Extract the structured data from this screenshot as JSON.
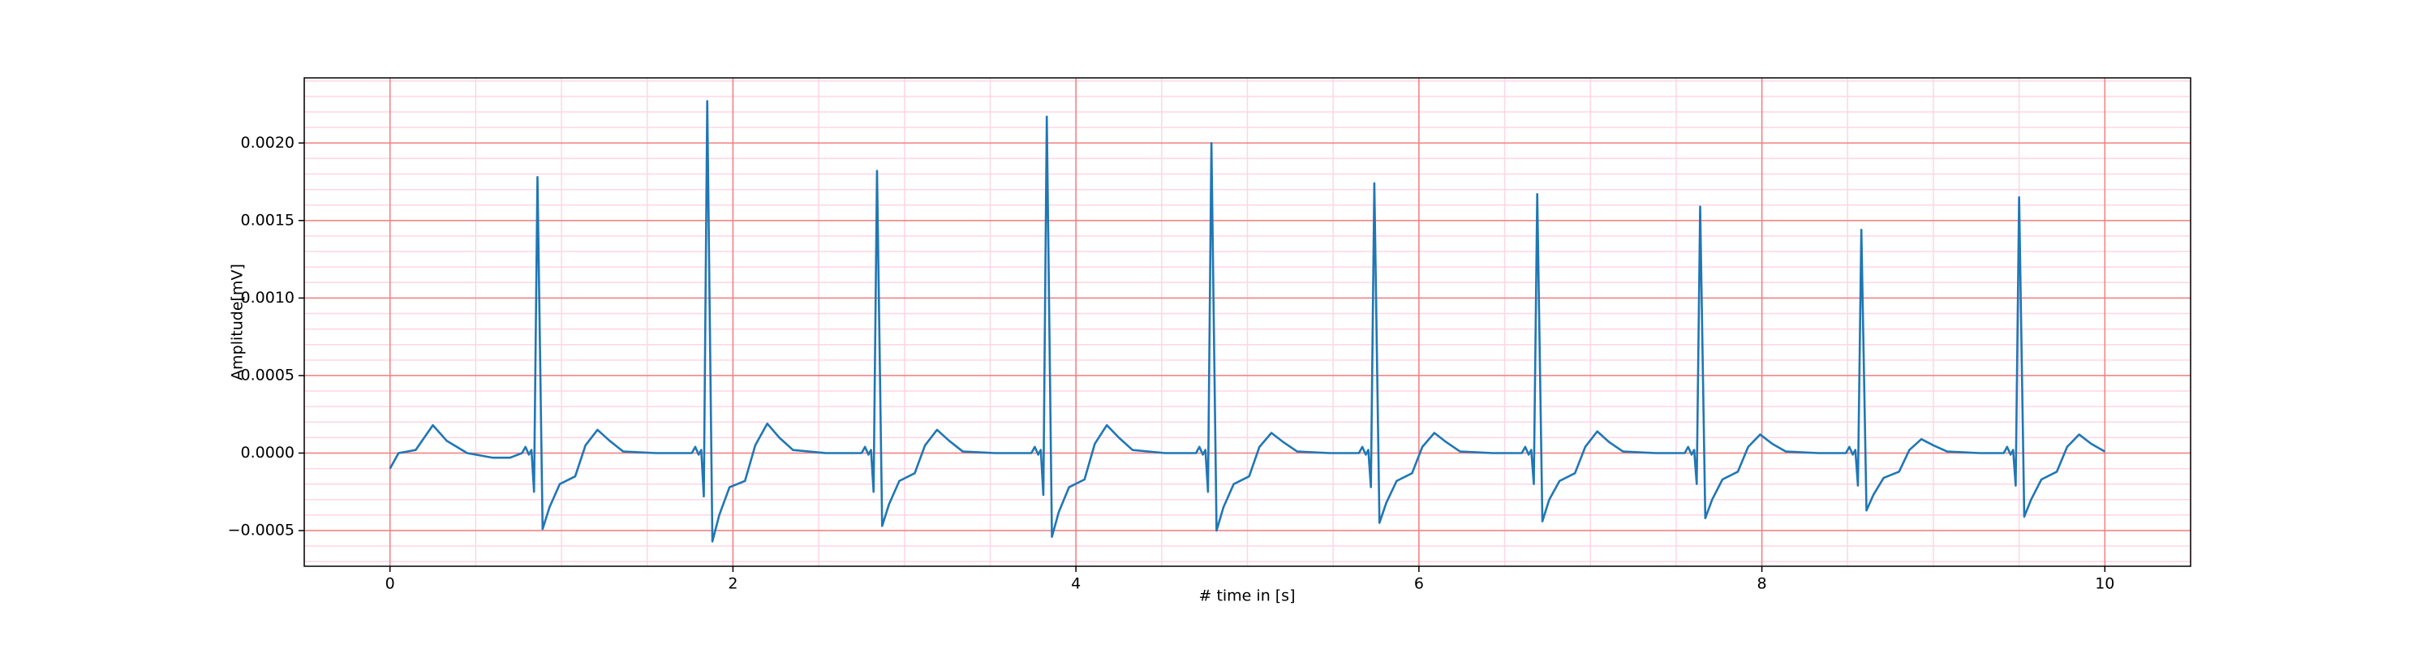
{
  "chart_data": {
    "type": "line",
    "xlabel": "# time in [s]",
    "ylabel": "Amplitude[mV]",
    "xlim": [
      -0.5,
      10.5
    ],
    "ylim": [
      -0.00073,
      0.00242
    ],
    "xticks": [
      0,
      2,
      4,
      6,
      8,
      10
    ],
    "yticks": [
      {
        "value": -0.0005,
        "label": "−0.0005"
      },
      {
        "value": 0,
        "label": "0.0000"
      },
      {
        "value": 0.0005,
        "label": "0.0005"
      },
      {
        "value": 0.001,
        "label": "0.0010"
      },
      {
        "value": 0.0015,
        "label": "0.0015"
      },
      {
        "value": 0.002,
        "label": "0.0020"
      }
    ],
    "grid": true,
    "grid_color": "#f08080",
    "minor_grid": true,
    "minor_grid_color": "#ffd6e6",
    "series": [
      {
        "color": "#1f77b4",
        "x": [
          0,
          0.05,
          0.15,
          0.25,
          0.33,
          0.45,
          0.6,
          0.7,
          0.77,
          0.79,
          0.81,
          0.825,
          0.84,
          0.86,
          0.89,
          0.93,
          0.99,
          1.08,
          1.14,
          1.21,
          1.28,
          1.36,
          1.55,
          1.76,
          1.78,
          1.8,
          1.815,
          1.83,
          1.85,
          1.88,
          1.92,
          1.98,
          2.07,
          2.13,
          2.2,
          2.27,
          2.35,
          2.54,
          2.75,
          2.77,
          2.79,
          2.805,
          2.82,
          2.84,
          2.87,
          2.91,
          2.97,
          3.06,
          3.12,
          3.19,
          3.26,
          3.34,
          3.53,
          3.74,
          3.76,
          3.78,
          3.795,
          3.81,
          3.83,
          3.86,
          3.9,
          3.96,
          4.05,
          4.11,
          4.18,
          4.25,
          4.33,
          4.52,
          4.7,
          4.72,
          4.74,
          4.755,
          4.77,
          4.79,
          4.82,
          4.86,
          4.92,
          5.01,
          5.07,
          5.14,
          5.21,
          5.29,
          5.48,
          5.65,
          5.67,
          5.69,
          5.705,
          5.72,
          5.74,
          5.77,
          5.81,
          5.87,
          5.96,
          6.02,
          6.09,
          6.16,
          6.24,
          6.43,
          6.6,
          6.62,
          6.64,
          6.655,
          6.67,
          6.69,
          6.72,
          6.76,
          6.82,
          6.91,
          6.97,
          7.04,
          7.11,
          7.19,
          7.38,
          7.55,
          7.57,
          7.59,
          7.605,
          7.62,
          7.64,
          7.67,
          7.71,
          7.77,
          7.86,
          7.92,
          7.99,
          8.06,
          8.14,
          8.33,
          8.49,
          8.51,
          8.53,
          8.545,
          8.56,
          8.58,
          8.61,
          8.65,
          8.71,
          8.8,
          8.86,
          8.93,
          9.0,
          9.08,
          9.27,
          9.41,
          9.43,
          9.45,
          9.465,
          9.48,
          9.5,
          9.53,
          9.57,
          9.63,
          9.72,
          9.78,
          9.85,
          9.92,
          10.0
        ],
        "values": [
          -0.0001,
          0,
          2e-05,
          0.00018,
          8e-05,
          0,
          -3e-05,
          -3e-05,
          0,
          4e-05,
          -1e-05,
          2e-05,
          -0.00025,
          0.00178,
          -0.00049,
          -0.00035,
          -0.0002,
          -0.00015,
          5e-05,
          0.00015,
          8e-05,
          1e-05,
          0,
          0,
          4e-05,
          -1e-05,
          2e-05,
          -0.00028,
          0.00227,
          -0.00057,
          -0.0004,
          -0.00022,
          -0.00018,
          5e-05,
          0.00019,
          0.0001,
          2e-05,
          0,
          0,
          4e-05,
          -1e-05,
          2e-05,
          -0.00025,
          0.00182,
          -0.00047,
          -0.00033,
          -0.00018,
          -0.00013,
          5e-05,
          0.00015,
          8e-05,
          1e-05,
          0,
          0,
          4e-05,
          -1e-05,
          2e-05,
          -0.00027,
          0.00217,
          -0.00054,
          -0.00038,
          -0.00022,
          -0.00017,
          6e-05,
          0.00018,
          0.0001,
          2e-05,
          0,
          0,
          4e-05,
          -1e-05,
          2e-05,
          -0.00025,
          0.002,
          -0.0005,
          -0.00035,
          -0.0002,
          -0.00015,
          4e-05,
          0.00013,
          7e-05,
          1e-05,
          0,
          0,
          4e-05,
          -1e-05,
          2e-05,
          -0.00022,
          0.00174,
          -0.00045,
          -0.00032,
          -0.00018,
          -0.00013,
          4e-05,
          0.00013,
          7e-05,
          1e-05,
          0,
          0,
          4e-05,
          -1e-05,
          2e-05,
          -0.0002,
          0.00167,
          -0.00044,
          -0.0003,
          -0.00018,
          -0.00013,
          4e-05,
          0.00014,
          7e-05,
          1e-05,
          0,
          0,
          4e-05,
          -1e-05,
          2e-05,
          -0.0002,
          0.00159,
          -0.00042,
          -0.0003,
          -0.00017,
          -0.00012,
          4e-05,
          0.00012,
          6e-05,
          1e-05,
          0,
          0,
          4e-05,
          -1e-05,
          2e-05,
          -0.00021,
          0.00144,
          -0.00037,
          -0.00027,
          -0.00016,
          -0.00012,
          2e-05,
          9e-05,
          5e-05,
          1e-05,
          0,
          0,
          4e-05,
          -1e-05,
          2e-05,
          -0.00021,
          0.00165,
          -0.00041,
          -0.0003,
          -0.00017,
          -0.00012,
          4e-05,
          0.00012,
          6e-05,
          1e-05
        ]
      }
    ]
  }
}
